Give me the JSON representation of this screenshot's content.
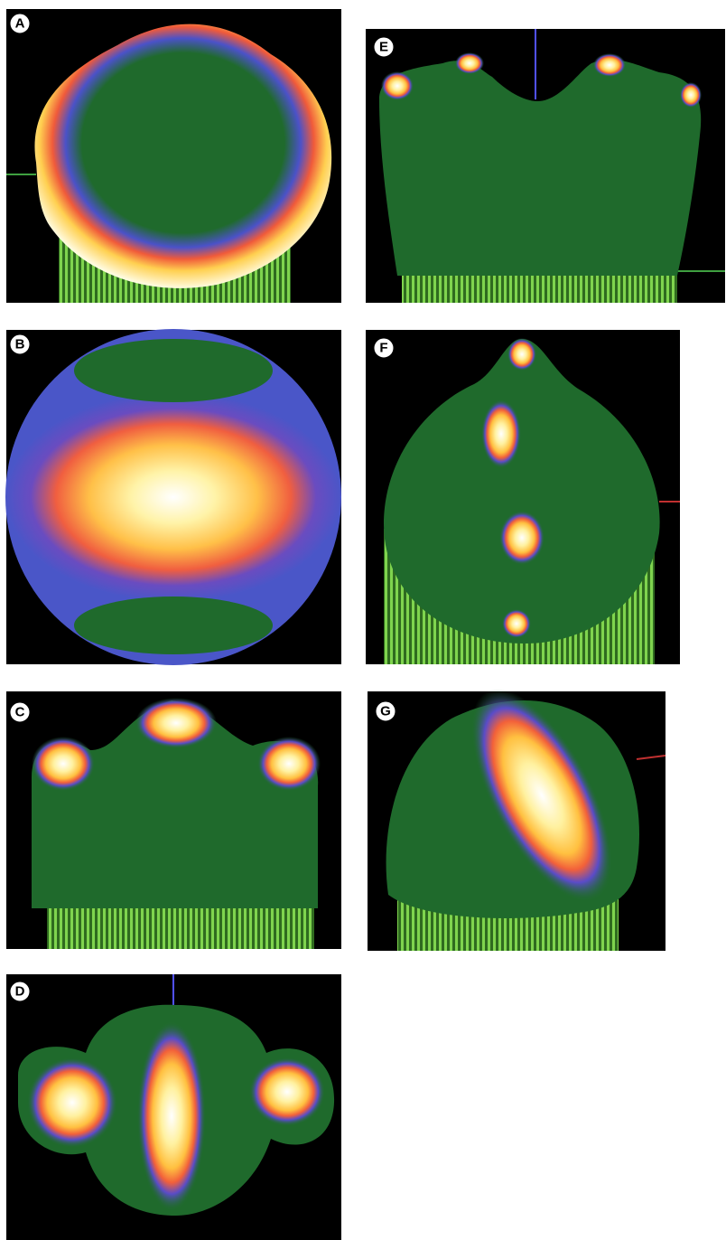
{
  "panels": [
    {
      "label": "A"
    },
    {
      "label": "B"
    },
    {
      "label": "C"
    },
    {
      "label": "D"
    },
    {
      "label": "E"
    },
    {
      "label": "F"
    },
    {
      "label": "G"
    }
  ]
}
